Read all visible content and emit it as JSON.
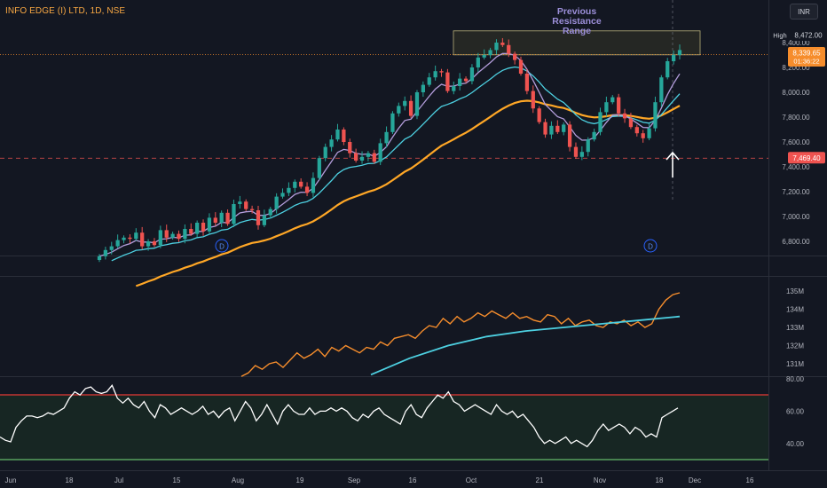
{
  "header": {
    "symbol": "INFO EDGE (I) LTD, 1D, NSE",
    "currency": "INR"
  },
  "annotation": {
    "line1": "Previous",
    "line2": "Resistance",
    "line3": "Range"
  },
  "price_labels": {
    "high_tag": "High",
    "high_value": "8,472.00",
    "last_value": "8,339.65",
    "countdown": "01:36:22",
    "support_value": "7,469.40"
  },
  "colors": {
    "up": "#26a69a",
    "down": "#ef5350",
    "ema_fast": "#b39ddb",
    "ema_mid": "#4dd0e1",
    "ema_slow": "#ffa726",
    "rs_line": "#f68d2c",
    "rs_ma": "#4dd0e1",
    "rsi": "#ffffff",
    "rsi_upper": "#e53935",
    "rsi_lower": "#66bb6a",
    "annotation": "#9c8fd9"
  },
  "chart_data": [
    {
      "type": "candlestick",
      "x_axis_labels": [
        "Jun",
        "18",
        "Jul",
        "15",
        "Aug",
        "19",
        "Sep",
        "16",
        "Oct",
        "21",
        "Nov",
        "18",
        "Dec",
        "16"
      ],
      "y_ticks": [
        "8,400.00",
        "8,200.00",
        "8,000.00",
        "7,800.00",
        "7,600.00",
        "7,400.00",
        "7,200.00",
        "7,000.00",
        "6,800.00"
      ],
      "ylim": [
        6720,
        8730
      ],
      "resistance_zone": [
        8330,
        8480
      ],
      "support_level": 7469.4,
      "dividend_markers": [
        "D",
        "D"
      ],
      "closes": [
        6680,
        6730,
        6760,
        6810,
        6830,
        6820,
        6870,
        6760,
        6800,
        6770,
        6890,
        6830,
        6860,
        6820,
        6900,
        6860,
        6950,
        6880,
        6990,
        6950,
        7030,
        6940,
        7100,
        7120,
        7060,
        7050,
        6930,
        7010,
        7060,
        7160,
        7190,
        7230,
        7280,
        7240,
        7190,
        7310,
        7470,
        7560,
        7620,
        7700,
        7600,
        7510,
        7450,
        7480,
        7510,
        7440,
        7590,
        7680,
        7830,
        7890,
        7930,
        7810,
        8000,
        8060,
        8120,
        8170,
        8160,
        8010,
        8050,
        8110,
        8090,
        8200,
        8280,
        8300,
        8340,
        8400,
        8380,
        8310,
        8260,
        8150,
        8010,
        7870,
        7760,
        7660,
        7730,
        7680,
        7740,
        7560,
        7480,
        7520,
        7620,
        7680,
        7840,
        7920,
        7960,
        7830,
        7790,
        7720,
        7670,
        7630,
        7710,
        7920,
        8120,
        8250,
        8300,
        8340
      ]
    },
    {
      "type": "line",
      "name": "",
      "y_ticks": [
        "135M",
        "134M",
        "133M",
        "132M",
        "131M"
      ],
      "ylim": [
        130.4,
        135.7
      ],
      "rs_line": [
        130.3,
        130.5,
        130.9,
        130.7,
        131.0,
        131.1,
        130.8,
        131.2,
        131.6,
        131.3,
        131.5,
        131.8,
        131.4,
        131.9,
        131.7,
        132.0,
        131.8,
        131.6,
        131.9,
        131.8,
        132.2,
        132.0,
        132.4,
        132.5,
        132.6,
        132.4,
        132.8,
        133.1,
        133.0,
        133.5,
        133.2,
        133.6,
        133.3,
        133.5,
        133.8,
        133.6,
        133.9,
        133.7,
        133.5,
        133.8,
        133.5,
        133.6,
        133.4,
        133.3,
        133.7,
        133.6,
        133.2,
        133.5,
        133.1,
        133.3,
        133.4,
        133.1,
        133.0,
        133.3,
        133.2,
        133.4,
        133.1,
        133.3,
        133.0,
        133.2,
        134.0,
        134.5,
        134.8,
        134.9
      ],
      "rs_ma": [
        130.4,
        131.3,
        132.0,
        132.5,
        132.8,
        133.0,
        133.2,
        133.4,
        133.6
      ],
      "rs_ma_x_start_index": 0
    },
    {
      "type": "line",
      "name": "",
      "y_ticks": [
        "80.00",
        "60.00",
        "40.00"
      ],
      "ylim": [
        28,
        82
      ],
      "upper_band": 70,
      "lower_band": 30,
      "values": [
        44,
        42,
        41,
        50,
        54,
        57,
        57,
        56,
        57,
        59,
        58,
        60,
        62,
        68,
        72,
        70,
        74,
        75,
        72,
        71,
        72,
        76,
        68,
        65,
        68,
        64,
        62,
        66,
        60,
        56,
        64,
        62,
        58,
        60,
        62,
        60,
        58,
        60,
        63,
        58,
        60,
        56,
        60,
        62,
        54,
        60,
        66,
        62,
        54,
        58,
        64,
        58,
        52,
        60,
        64,
        60,
        58,
        58,
        62,
        58,
        60,
        60,
        62,
        60,
        62,
        60,
        56,
        54,
        58,
        56,
        60,
        62,
        58,
        56,
        54,
        52,
        60,
        64,
        58,
        56,
        62,
        66,
        70,
        68,
        72,
        66,
        64,
        60,
        62,
        64,
        62,
        60,
        58,
        64,
        60,
        58,
        60,
        56,
        58,
        54,
        50,
        44,
        40,
        42,
        40,
        42,
        44,
        40,
        42,
        40,
        38,
        42,
        48,
        52,
        48,
        50,
        52,
        50,
        46,
        50,
        48,
        44,
        46,
        44,
        56,
        58,
        60,
        62
      ]
    }
  ]
}
